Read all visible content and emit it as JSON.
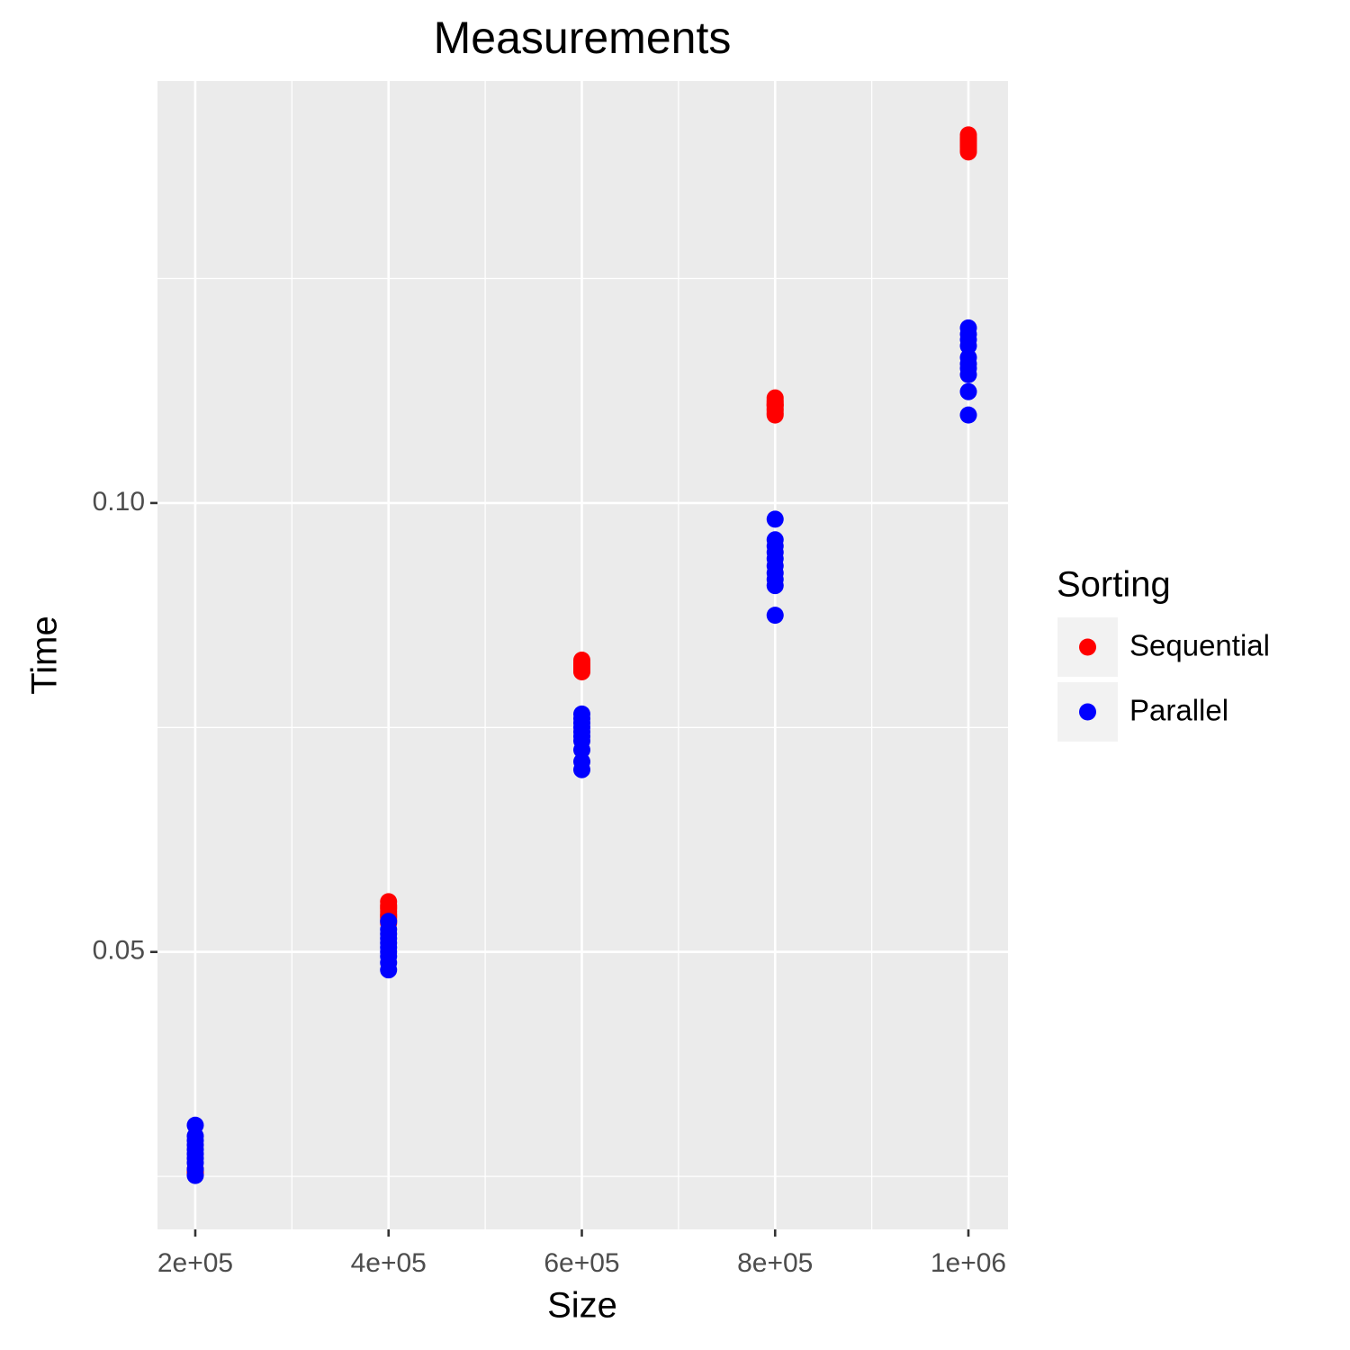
{
  "chart_data": {
    "type": "scatter",
    "title": "Measurements",
    "x_label": "Size",
    "y_label": "Time",
    "legend_title": "Sorting",
    "legend": "right",
    "grid": true,
    "background": "#ebebeb",
    "xlim": [
      160900,
      1040970
    ],
    "ylim": [
      0.0191,
      0.147
    ],
    "xticks": [
      {
        "value": 200000,
        "label": "2e+05"
      },
      {
        "value": 400000,
        "label": "4e+05"
      },
      {
        "value": 600000,
        "label": "6e+05"
      },
      {
        "value": 800000,
        "label": "8e+05"
      },
      {
        "value": 1000000,
        "label": "1e+06"
      }
    ],
    "xminorticks": [
      300000,
      500000,
      700000,
      900000
    ],
    "yticks": [
      0.05,
      {
        "value": 0.1,
        "label": "0.10"
      }
    ],
    "yminorticks": [
      0.025,
      0.075,
      0.125
    ],
    "series": [
      {
        "name": "Sequential",
        "color": "#ff0000",
        "x": [
          200000,
          200000,
          200000,
          200000,
          200000,
          200000,
          200000,
          200000,
          200000,
          200000,
          400000,
          400000,
          400000,
          400000,
          400000,
          400000,
          400000,
          400000,
          400000,
          400000,
          600000,
          600000,
          600000,
          600000,
          600000,
          600000,
          600000,
          600000,
          600000,
          600000,
          800000,
          800000,
          800000,
          800000,
          800000,
          800000,
          800000,
          800000,
          800000,
          800000,
          1000000,
          1000000,
          1000000,
          1000000,
          1000000,
          1000000,
          1000000,
          1000000,
          1000000,
          1000000
        ],
        "values": [
          0.0256,
          0.0254,
          0.0258,
          0.0253,
          0.0255,
          0.0257,
          0.0254,
          0.0256,
          0.0253,
          0.0255,
          0.0556,
          0.0552,
          0.0548,
          0.0545,
          0.0542,
          0.0538,
          0.0535,
          0.0532,
          0.055,
          0.054,
          0.0825,
          0.0822,
          0.082,
          0.0818,
          0.0816,
          0.0815,
          0.0813,
          0.0812,
          0.0821,
          0.0817,
          0.1117,
          0.1114,
          0.1112,
          0.111,
          0.1108,
          0.1105,
          0.1103,
          0.11,
          0.1098,
          0.1109,
          0.141,
          0.1407,
          0.1405,
          0.1402,
          0.14,
          0.1398,
          0.1396,
          0.1393,
          0.1391,
          0.1404
        ]
      },
      {
        "name": "Parallel",
        "color": "#0000ff",
        "x": [
          200000,
          200000,
          200000,
          200000,
          200000,
          200000,
          200000,
          200000,
          200000,
          200000,
          400000,
          400000,
          400000,
          400000,
          400000,
          400000,
          400000,
          400000,
          400000,
          400000,
          600000,
          600000,
          600000,
          600000,
          600000,
          600000,
          600000,
          600000,
          600000,
          600000,
          800000,
          800000,
          800000,
          800000,
          800000,
          800000,
          800000,
          800000,
          800000,
          800000,
          1000000,
          1000000,
          1000000,
          1000000,
          1000000,
          1000000,
          1000000,
          1000000,
          1000000,
          1000000
        ],
        "values": [
          0.0307,
          0.0295,
          0.029,
          0.0285,
          0.028,
          0.0275,
          0.027,
          0.0265,
          0.0258,
          0.0251,
          0.0534,
          0.0525,
          0.052,
          0.0515,
          0.051,
          0.0505,
          0.05,
          0.0495,
          0.0488,
          0.048,
          0.0765,
          0.076,
          0.0755,
          0.075,
          0.0745,
          0.074,
          0.0735,
          0.0725,
          0.0712,
          0.0703,
          0.0982,
          0.0959,
          0.0952,
          0.0945,
          0.0938,
          0.093,
          0.0922,
          0.0915,
          0.0908,
          0.0875,
          0.1195,
          0.1188,
          0.1182,
          0.1175,
          0.1162,
          0.1155,
          0.115,
          0.1143,
          0.1124,
          0.1098
        ]
      }
    ]
  }
}
